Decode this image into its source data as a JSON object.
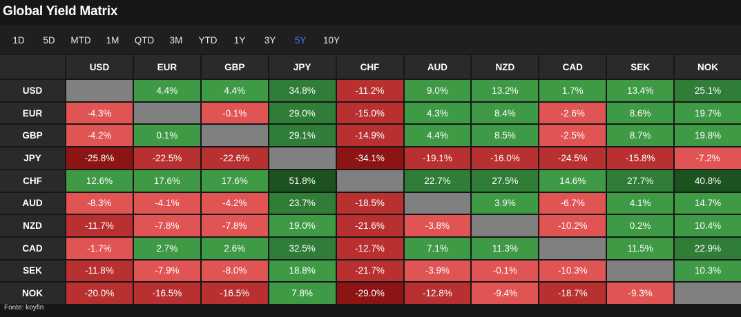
{
  "title": "Global Yield Matrix",
  "tabs": [
    {
      "label": "1D",
      "active": false
    },
    {
      "label": "5D",
      "active": false
    },
    {
      "label": "MTD",
      "active": false
    },
    {
      "label": "1M",
      "active": false
    },
    {
      "label": "QTD",
      "active": false
    },
    {
      "label": "3M",
      "active": false
    },
    {
      "label": "YTD",
      "active": false
    },
    {
      "label": "1Y",
      "active": false
    },
    {
      "label": "3Y",
      "active": false
    },
    {
      "label": "5Y",
      "active": true
    },
    {
      "label": "10Y",
      "active": false
    }
  ],
  "currencies": [
    "USD",
    "EUR",
    "GBP",
    "JPY",
    "CHF",
    "AUD",
    "NZD",
    "CAD",
    "SEK",
    "NOK"
  ],
  "matrix": [
    [
      null,
      4.4,
      4.4,
      34.8,
      -11.2,
      9.0,
      13.2,
      1.7,
      13.4,
      25.1
    ],
    [
      -4.3,
      null,
      -0.1,
      29.0,
      -15.0,
      4.3,
      8.4,
      -2.6,
      8.6,
      19.7
    ],
    [
      -4.2,
      0.1,
      null,
      29.1,
      -14.9,
      4.4,
      8.5,
      -2.5,
      8.7,
      19.8
    ],
    [
      -25.8,
      -22.5,
      -22.6,
      null,
      -34.1,
      -19.1,
      -16.0,
      -24.5,
      -15.8,
      -7.2
    ],
    [
      12.6,
      17.6,
      17.6,
      51.8,
      null,
      22.7,
      27.5,
      14.6,
      27.7,
      40.8
    ],
    [
      -8.3,
      -4.1,
      -4.2,
      23.7,
      -18.5,
      null,
      3.9,
      -6.7,
      4.1,
      14.7
    ],
    [
      -11.7,
      -7.8,
      -7.8,
      19.0,
      -21.6,
      -3.8,
      null,
      -10.2,
      0.2,
      10.4
    ],
    [
      -1.7,
      2.7,
      2.6,
      32.5,
      -12.7,
      7.1,
      11.3,
      null,
      11.5,
      22.9
    ],
    [
      -11.8,
      -7.9,
      -8.0,
      18.8,
      -21.7,
      -3.9,
      -0.1,
      -10.3,
      null,
      10.3
    ],
    [
      -20.0,
      -16.5,
      -16.5,
      7.8,
      -29.0,
      -12.8,
      -9.4,
      -18.7,
      -9.3,
      null
    ]
  ],
  "colors": {
    "positive_light": "#3f9a46",
    "positive_mid": "#2f7d37",
    "positive_dark": "#1b5220",
    "negative_light": "#e05454",
    "negative_mid": "#b83030",
    "negative_dark": "#8c1414",
    "diagonal": "#808080",
    "active_tab": "#3f7bff"
  },
  "footer": "Fonte: koyfin"
}
